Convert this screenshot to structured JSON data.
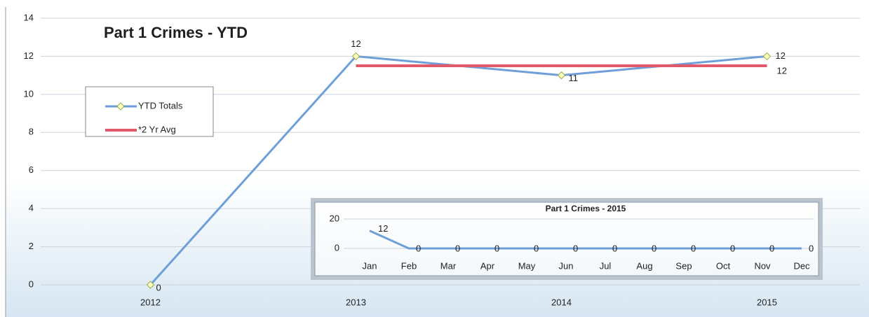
{
  "chart_data": [
    {
      "type": "line",
      "title": "Part 1 Crimes - YTD",
      "categories": [
        "2012",
        "2013",
        "2014",
        "2015"
      ],
      "series": [
        {
          "name": "YTD Totals",
          "color": "#6f9fd8",
          "marker": "diamond",
          "values": [
            0,
            12,
            11,
            12
          ]
        },
        {
          "name": "*2 Yr Avg",
          "color": "#e25a6a",
          "values": [
            null,
            11.5,
            11.5,
            11.5
          ],
          "value_labels": [
            null,
            null,
            null,
            "12"
          ]
        }
      ],
      "ylim": [
        0,
        14
      ],
      "yticks": [
        0,
        2,
        4,
        6,
        8,
        10,
        12,
        14
      ],
      "grid": true,
      "legend": "upper left"
    },
    {
      "type": "line",
      "title": "Part 1 Crimes - 2015",
      "categories": [
        "Jan",
        "Feb",
        "Mar",
        "Apr",
        "May",
        "Jun",
        "Jul",
        "Aug",
        "Sep",
        "Oct",
        "Nov",
        "Dec"
      ],
      "series": [
        {
          "name": null,
          "color": "#6f9fd8",
          "values": [
            12,
            0,
            0,
            0,
            0,
            0,
            0,
            0,
            0,
            0,
            0,
            0
          ]
        }
      ],
      "ylim": [
        0,
        20
      ],
      "yticks": [
        0,
        20
      ],
      "grid": true
    }
  ]
}
